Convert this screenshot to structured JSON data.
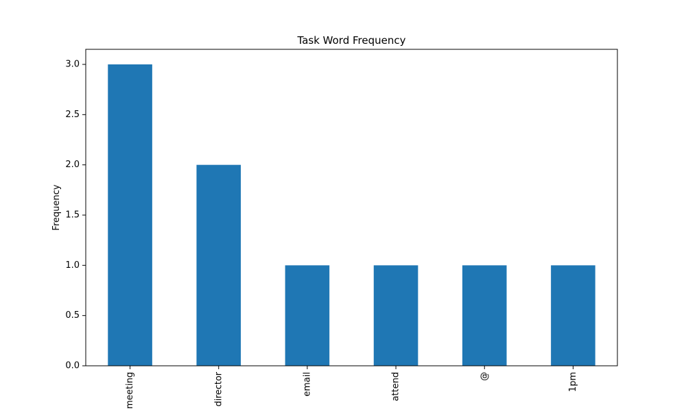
{
  "chart_data": {
    "type": "bar",
    "title": "Task Word Frequency",
    "xlabel": "",
    "ylabel": "Frequency",
    "categories": [
      "meeting",
      "director",
      "email",
      "attend",
      "@",
      "1pm"
    ],
    "values": [
      3,
      2,
      1,
      1,
      1,
      1
    ],
    "ylim": [
      0,
      3.15
    ],
    "yticks": [
      0.0,
      0.5,
      1.0,
      1.5,
      2.0,
      2.5,
      3.0
    ],
    "ytick_labels": [
      "0.0",
      "0.5",
      "1.0",
      "1.5",
      "2.0",
      "2.5",
      "3.0"
    ],
    "x_tick_rotation": "vertical",
    "grid": false,
    "legend": "none",
    "colors": {
      "bar": "#1f77b4",
      "axes": "#000000",
      "background": "#ffffff"
    }
  }
}
